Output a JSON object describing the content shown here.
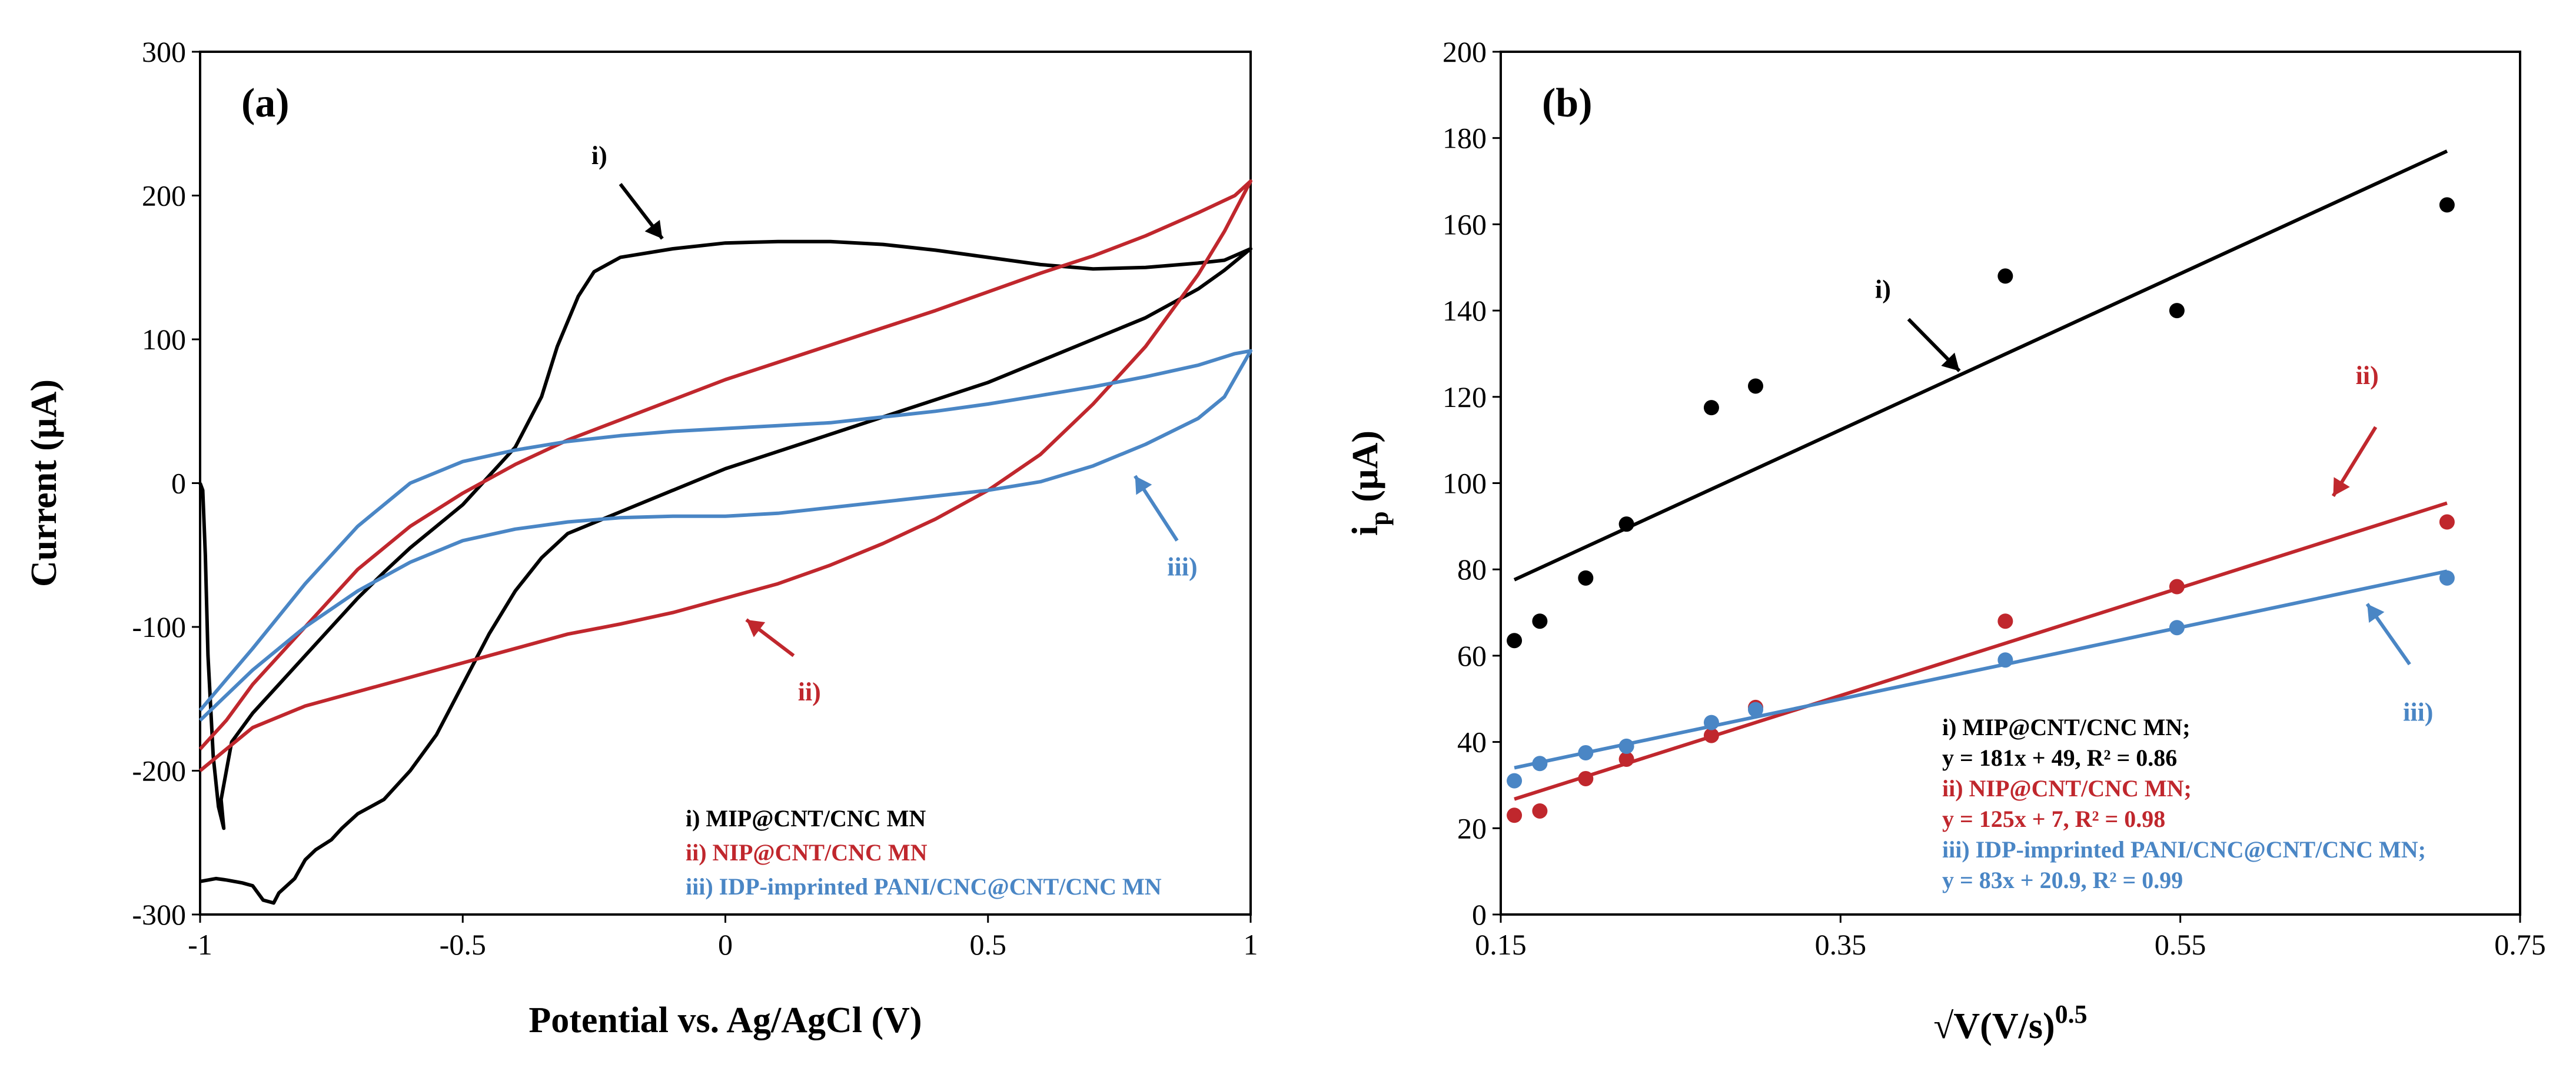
{
  "colors": {
    "black": "#000000",
    "red": "#C0272D",
    "blue": "#4A86C5"
  },
  "chart_data": [
    {
      "type": "line",
      "panel_label": "(a)",
      "xlabel": "Potential vs. Ag/AgCl (V)",
      "ylabel": "Current (µA)",
      "xlim": [
        -1,
        1
      ],
      "ylim": [
        -300,
        300
      ],
      "xticks": [
        -1,
        -0.5,
        0,
        0.5,
        1
      ],
      "xtick_labels": [
        "-1",
        "-0.5",
        "0",
        "0.5",
        "1"
      ],
      "yticks": [
        -300,
        -200,
        -100,
        0,
        100,
        200,
        300
      ],
      "ytick_labels": [
        "-300",
        "-200",
        "-100",
        "0",
        "100",
        "200",
        "300"
      ],
      "grid": false,
      "legend_position": "bottom-right",
      "legend": [
        "i) MIP@CNT/CNC MN",
        "ii) NIP@CNT/CNC MN",
        "iii) IDP-imprinted  PANI/CNC@CNT/CNC MN"
      ],
      "annotations": [
        {
          "text": "i)",
          "color": "black",
          "x": -0.24,
          "y": 228
        },
        {
          "text": "ii)",
          "color": "red",
          "x": 0.16,
          "y": -145
        },
        {
          "text": "iii)",
          "color": "blue",
          "x": 0.87,
          "y": -58
        }
      ],
      "series": [
        {
          "color": "black",
          "x": [
            -1.0,
            -0.995,
            -0.99,
            -0.985,
            -0.975,
            -0.965,
            -0.955,
            -0.96,
            -0.94,
            -0.9,
            -0.85,
            -0.8,
            -0.75,
            -0.7,
            -0.65,
            -0.6,
            -0.55,
            -0.5,
            -0.45,
            -0.4,
            -0.35,
            -0.32,
            -0.28,
            -0.25,
            -0.2,
            -0.1,
            0.0,
            0.1,
            0.2,
            0.3,
            0.4,
            0.5,
            0.6,
            0.7,
            0.8,
            0.9,
            0.95,
            1.0,
            0.95,
            0.9,
            0.8,
            0.7,
            0.6,
            0.5,
            0.4,
            0.3,
            0.2,
            0.1,
            0.0,
            -0.1,
            -0.2,
            -0.3,
            -0.35,
            -0.4,
            -0.45,
            -0.5,
            -0.55,
            -0.6,
            -0.65,
            -0.7,
            -0.73,
            -0.75,
            -0.78,
            -0.8,
            -0.82,
            -0.85,
            -0.86,
            -0.88,
            -0.9,
            -0.92,
            -0.95,
            -0.97,
            -1.0
          ],
          "y": [
            0,
            -5,
            -50,
            -120,
            -190,
            -225,
            -240,
            -220,
            -180,
            -160,
            -140,
            -120,
            -100,
            -80,
            -62,
            -45,
            -30,
            -15,
            5,
            25,
            60,
            95,
            130,
            147,
            157,
            163,
            167,
            168,
            168,
            166,
            162,
            157,
            152,
            149,
            150,
            153,
            155,
            163,
            148,
            135,
            115,
            100,
            85,
            70,
            58,
            46,
            34,
            22,
            10,
            -5,
            -20,
            -35,
            -52,
            -75,
            -105,
            -140,
            -175,
            -200,
            -220,
            -230,
            -240,
            -248,
            -255,
            -262,
            -275,
            -285,
            -292,
            -290,
            -280,
            -278,
            -276,
            -275,
            -277
          ]
        },
        {
          "color": "red",
          "x": [
            -1.0,
            -0.95,
            -0.9,
            -0.8,
            -0.7,
            -0.6,
            -0.5,
            -0.4,
            -0.3,
            -0.2,
            -0.1,
            0.0,
            0.1,
            0.2,
            0.3,
            0.4,
            0.5,
            0.6,
            0.7,
            0.8,
            0.9,
            0.95,
            1.0,
            0.97,
            0.9,
            0.8,
            0.7,
            0.6,
            0.5,
            0.4,
            0.3,
            0.2,
            0.1,
            0.0,
            -0.1,
            -0.2,
            -0.3,
            -0.4,
            -0.5,
            -0.6,
            -0.7,
            -0.8,
            -0.9,
            -0.95,
            -1.0
          ],
          "y": [
            -200,
            -185,
            -170,
            -155,
            -145,
            -135,
            -125,
            -115,
            -105,
            -98,
            -90,
            -80,
            -70,
            -57,
            -42,
            -25,
            -5,
            20,
            55,
            95,
            145,
            175,
            210,
            200,
            188,
            172,
            158,
            146,
            133,
            120,
            108,
            96,
            84,
            72,
            58,
            44,
            30,
            13,
            -7,
            -30,
            -60,
            -100,
            -140,
            -165,
            -185
          ]
        },
        {
          "color": "blue",
          "x": [
            -1.0,
            -0.9,
            -0.8,
            -0.7,
            -0.6,
            -0.5,
            -0.4,
            -0.3,
            -0.2,
            -0.1,
            0.0,
            0.1,
            0.2,
            0.3,
            0.4,
            0.5,
            0.6,
            0.7,
            0.8,
            0.9,
            0.95,
            1.0,
            0.97,
            0.9,
            0.8,
            0.7,
            0.6,
            0.5,
            0.4,
            0.3,
            0.2,
            0.1,
            0.0,
            -0.1,
            -0.2,
            -0.3,
            -0.4,
            -0.5,
            -0.6,
            -0.7,
            -0.8,
            -0.9,
            -1.0
          ],
          "y": [
            -165,
            -130,
            -100,
            -75,
            -55,
            -40,
            -32,
            -27,
            -24,
            -23,
            -23,
            -21,
            -17,
            -13,
            -9,
            -5,
            1,
            12,
            27,
            45,
            60,
            92,
            90,
            82,
            74,
            67,
            61,
            55,
            50,
            46,
            42,
            40,
            38,
            36,
            33,
            29,
            23,
            15,
            0,
            -30,
            -70,
            -115,
            -158
          ]
        }
      ]
    },
    {
      "type": "scatter",
      "panel_label": "(b)",
      "xlabel": "√V(V/s)",
      "xlabel_sup": "0.5",
      "ylabel": "i",
      "ylabel_sub": "p",
      "ylabel_rest": " (µA)",
      "xlim": [
        0.15,
        0.75
      ],
      "ylim": [
        0,
        200
      ],
      "xticks": [
        0.15,
        0.35,
        0.55,
        0.75
      ],
      "xtick_labels": [
        "0.15",
        "0.35",
        "0.55",
        "0.75"
      ],
      "yticks": [
        0,
        20,
        40,
        60,
        80,
        100,
        120,
        140,
        160,
        180,
        200
      ],
      "ytick_labels": [
        "0",
        "20",
        "40",
        "60",
        "80",
        "100",
        "120",
        "140",
        "160",
        "180",
        "200"
      ],
      "grid": false,
      "legend_position": "bottom-right",
      "annotations": [
        {
          "text": "i)",
          "color": "black",
          "x": 0.375,
          "y": 145
        },
        {
          "text": "ii)",
          "color": "red",
          "x": 0.66,
          "y": 125
        },
        {
          "text": "iii)",
          "color": "blue",
          "x": 0.69,
          "y": 47
        }
      ],
      "fit_labels": [
        {
          "line1": "i) MIP@CNT/CNC MN;",
          "line2": "y = 181x + 49, R² = 0.86",
          "color": "black"
        },
        {
          "line1": "ii) NIP@CNT/CNC MN;",
          "line2": "y = 125x + 7, R² = 0.98",
          "color": "red"
        },
        {
          "line1": "iii) IDP-imprinted  PANI/CNC@CNT/CNC MN;",
          "line2": "y = 83x + 20.9, R² = 0.99",
          "color": "blue"
        }
      ],
      "series": [
        {
          "color": "black",
          "x": [
            0.158,
            0.173,
            0.2,
            0.224,
            0.274,
            0.3,
            0.447,
            0.548,
            0.707
          ],
          "y": [
            63.5,
            68,
            78,
            90.5,
            117.5,
            122.5,
            148,
            140,
            164.5
          ],
          "fit": {
            "slope": 181,
            "intercept": 49
          }
        },
        {
          "color": "red",
          "x": [
            0.158,
            0.173,
            0.2,
            0.224,
            0.274,
            0.3,
            0.447,
            0.548,
            0.707
          ],
          "y": [
            23,
            24,
            31.5,
            36,
            41.5,
            48,
            68,
            76,
            91
          ],
          "fit": {
            "slope": 125,
            "intercept": 7
          }
        },
        {
          "color": "blue",
          "x": [
            0.158,
            0.173,
            0.2,
            0.224,
            0.274,
            0.3,
            0.447,
            0.548,
            0.707
          ],
          "y": [
            31,
            35,
            37.5,
            39,
            44.5,
            47.5,
            59,
            66.5,
            78
          ],
          "fit": {
            "slope": 83,
            "intercept": 20.9
          }
        }
      ]
    }
  ]
}
